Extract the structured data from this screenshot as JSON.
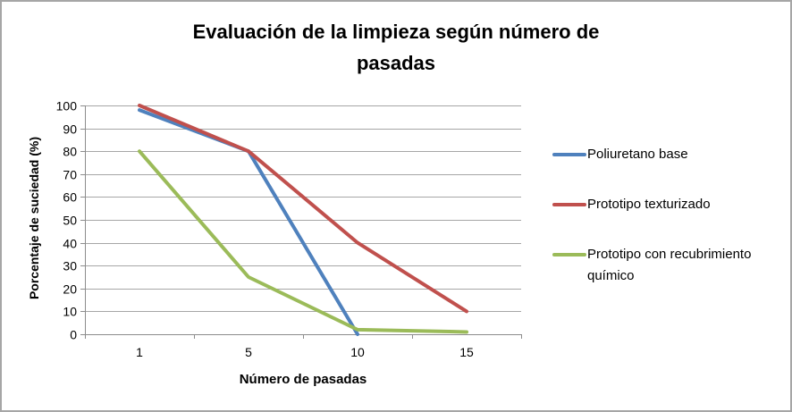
{
  "chart_data": {
    "type": "line",
    "title": "Evaluación de la limpieza según número de pasadas",
    "xlabel": "Número de pasadas",
    "ylabel": "Porcentaje de suciedad (%)",
    "categories": [
      1,
      5,
      10,
      15
    ],
    "series": [
      {
        "name": "Poliuretano base",
        "color": "#4F81BD",
        "values": [
          98,
          80,
          0,
          null
        ]
      },
      {
        "name": "Prototipo texturizado",
        "color": "#C0504D",
        "values": [
          100,
          80,
          40,
          10
        ]
      },
      {
        "name": "Prototipo con recubrimiento químico",
        "color": "#9BBB59",
        "values": [
          80,
          25,
          2,
          1
        ]
      }
    ],
    "ylim": [
      0,
      100
    ],
    "ytick_step": 10,
    "grid": "horizontal",
    "legend_position": "right",
    "gridline_color": "#A6A6A6",
    "axis_color": "#8C8C8C",
    "line_width": 4
  }
}
